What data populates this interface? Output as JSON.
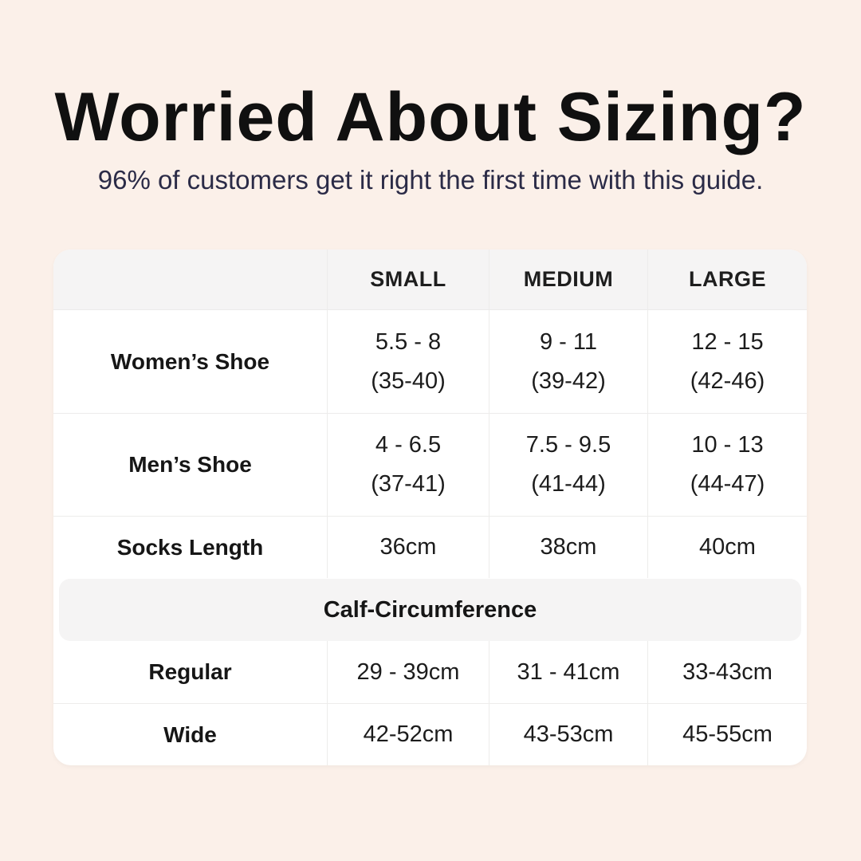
{
  "header": {
    "title": "Worried About Sizing?",
    "subtitle": "96% of customers get it right the first time with this guide."
  },
  "chart_data": {
    "type": "table",
    "title": "Worried About Sizing?",
    "subtitle": "96% of customers get it right the first time with this guide.",
    "columns": [
      "",
      "SMALL",
      "MEDIUM",
      "LARGE"
    ],
    "sections": [
      {
        "rows": [
          {
            "label": "Women’s Shoe",
            "values": [
              [
                "5.5 - 8",
                "(35-40)"
              ],
              [
                "9 - 11",
                "(39-42)"
              ],
              [
                "12 - 15",
                "(42-46)"
              ]
            ]
          },
          {
            "label": "Men’s Shoe",
            "values": [
              [
                "4 - 6.5",
                "(37-41)"
              ],
              [
                "7.5 - 9.5",
                "(41-44)"
              ],
              [
                "10 - 13",
                "(44-47)"
              ]
            ]
          },
          {
            "label": "Socks Length",
            "values": [
              [
                "36cm"
              ],
              [
                "38cm"
              ],
              [
                "40cm"
              ]
            ]
          }
        ]
      },
      {
        "header": "Calf-Circumference",
        "rows": [
          {
            "label": "Regular",
            "values": [
              [
                "29 - 39cm"
              ],
              [
                "31 - 41cm"
              ],
              [
                "33-43cm"
              ]
            ]
          },
          {
            "label": "Wide",
            "values": [
              [
                "42-52cm"
              ],
              [
                "43-53cm"
              ],
              [
                "45-55cm"
              ]
            ]
          }
        ]
      }
    ]
  },
  "colors": {
    "background": "#FBF0E9",
    "card": "#FFFFFF",
    "band": "#F5F4F4",
    "divider": "#EDECEB",
    "title_text": "#101010",
    "subtitle_text": "#2B2B47",
    "table_text": "#1C1C1C"
  }
}
